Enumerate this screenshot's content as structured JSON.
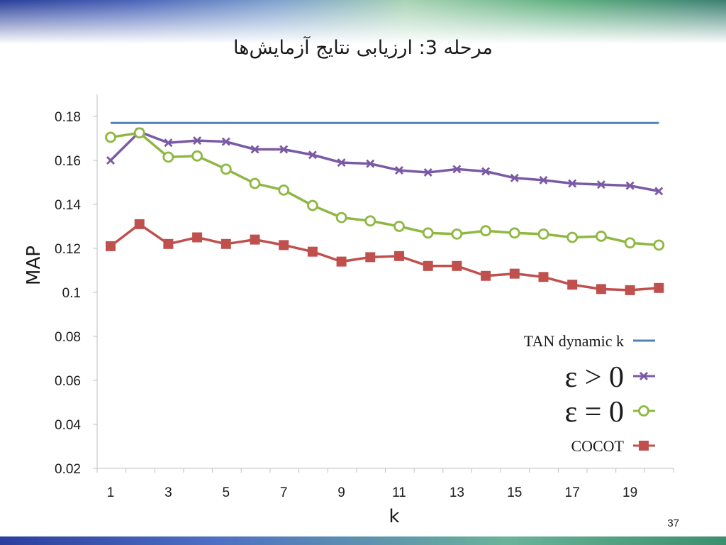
{
  "slide": {
    "title": "مرحله 3: ارزیابی نتایج آزمایش‌ها",
    "page_number": "37"
  },
  "chart_data": {
    "type": "line",
    "xlabel": "k",
    "ylabel": "MAP",
    "x": [
      1,
      2,
      3,
      4,
      5,
      6,
      7,
      8,
      9,
      10,
      11,
      12,
      13,
      14,
      15,
      16,
      17,
      18,
      19,
      20
    ],
    "x_tick_labels": [
      "1",
      "3",
      "5",
      "7",
      "9",
      "11",
      "13",
      "15",
      "17",
      "19"
    ],
    "y_tick_labels": [
      "0.18",
      "0.16",
      "0.14",
      "0.12",
      "0.1",
      "0.08",
      "0.06",
      "0.04",
      "0.02"
    ],
    "ylim": [
      0.02,
      0.18
    ],
    "grid": false,
    "legend_position": "right",
    "series": [
      {
        "name": "TAN dynamic k",
        "color": "#4f81bd",
        "marker": "none",
        "values": [
          0.177,
          0.177,
          0.177,
          0.177,
          0.177,
          0.177,
          0.177,
          0.177,
          0.177,
          0.177,
          0.177,
          0.177,
          0.177,
          0.177,
          0.177,
          0.177,
          0.177,
          0.177,
          0.177,
          0.177
        ]
      },
      {
        "name": "ε > 0",
        "color": "#7a5aa5",
        "marker": "x",
        "values": [
          0.16,
          0.173,
          0.168,
          0.169,
          0.1685,
          0.165,
          0.165,
          0.1625,
          0.159,
          0.1585,
          0.1555,
          0.1545,
          0.156,
          0.155,
          0.152,
          0.151,
          0.1495,
          0.149,
          0.1485,
          0.146
        ]
      },
      {
        "name": "ε = 0",
        "color": "#8fb843",
        "marker": "circle",
        "values": [
          0.1705,
          0.1725,
          0.1615,
          0.162,
          0.156,
          0.1495,
          0.1465,
          0.1395,
          0.134,
          0.1325,
          0.13,
          0.127,
          0.1265,
          0.128,
          0.127,
          0.1265,
          0.125,
          0.1255,
          0.1225,
          0.1215
        ]
      },
      {
        "name": "COCOT",
        "color": "#c0504d",
        "marker": "square",
        "values": [
          0.121,
          0.131,
          0.122,
          0.125,
          0.122,
          0.124,
          0.1215,
          0.1185,
          0.114,
          0.116,
          0.1165,
          0.112,
          0.112,
          0.1075,
          0.1085,
          0.107,
          0.1035,
          0.1015,
          0.101,
          0.102
        ]
      }
    ]
  }
}
